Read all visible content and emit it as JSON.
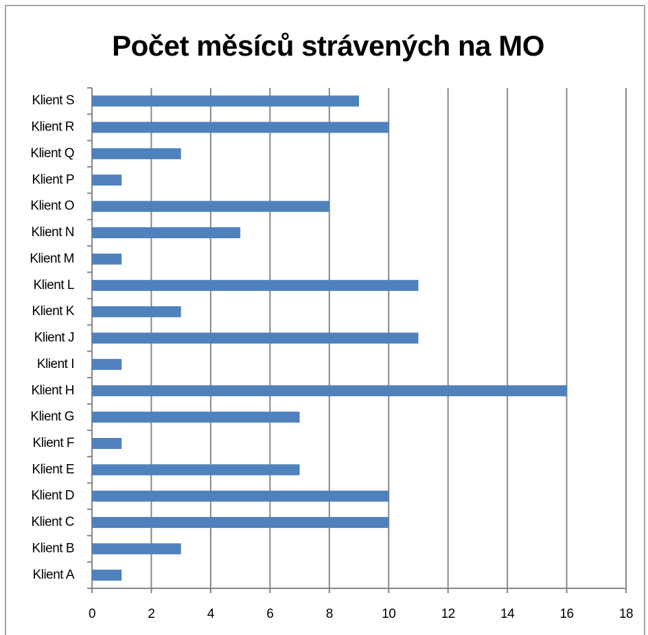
{
  "chart_data": {
    "type": "bar",
    "orientation": "horizontal",
    "title": "Počet měsíců strávených na MO",
    "categories": [
      "Klient A",
      "Klient B",
      "Klient C",
      "Klient D",
      "Klient E",
      "Klient F",
      "Klient G",
      "Klient H",
      "Klient I",
      "Klient J",
      "Klient K",
      "Klient L",
      "Klient M",
      "Klient N",
      "Klient O",
      "Klient P",
      "Klient Q",
      "Klient R",
      "Klient S"
    ],
    "values": [
      1,
      3,
      10,
      10,
      7,
      1,
      7,
      16,
      1,
      11,
      3,
      11,
      1,
      5,
      8,
      1,
      3,
      10,
      9
    ],
    "color": "#4f81bd",
    "xlim": [
      0,
      18
    ],
    "xticks": [
      0,
      2,
      4,
      6,
      8,
      10,
      12,
      14,
      16,
      18
    ],
    "grid": true
  }
}
